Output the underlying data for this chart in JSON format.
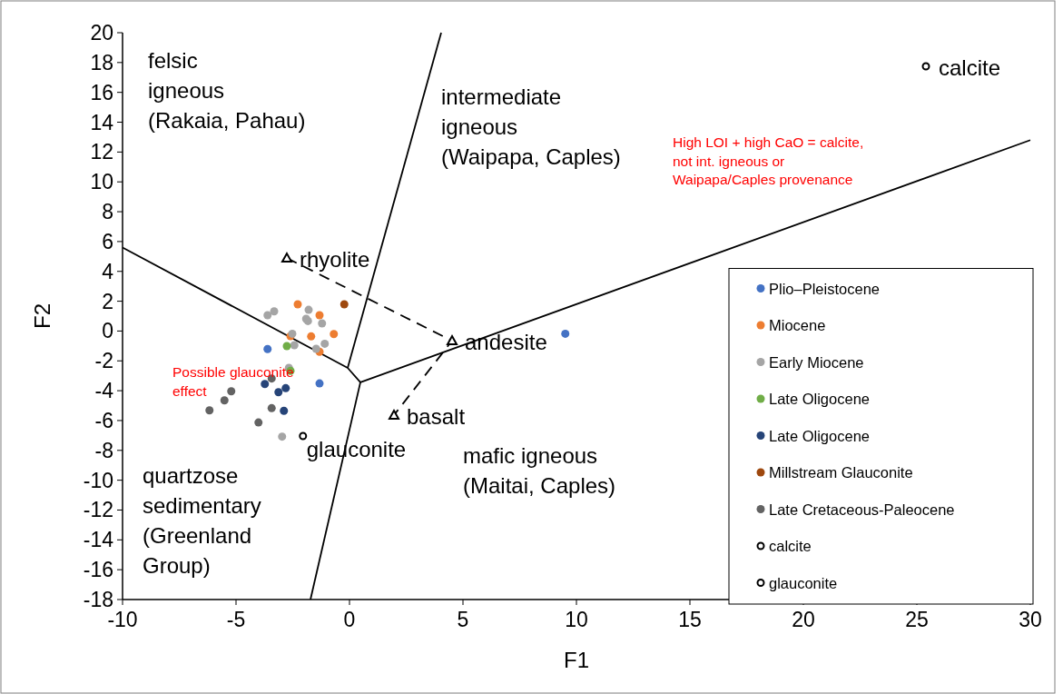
{
  "chart_data": {
    "type": "scatter",
    "xlabel": "F1",
    "ylabel": "F2",
    "xlim": [
      -10,
      30
    ],
    "ylim": [
      -18,
      20
    ],
    "xticks": [
      -10,
      -5,
      0,
      5,
      10,
      15,
      20,
      25,
      30
    ],
    "yticks": [
      -18,
      -16,
      -14,
      -12,
      -10,
      -8,
      -6,
      -4,
      -2,
      0,
      2,
      4,
      6,
      8,
      10,
      12,
      14,
      16,
      18,
      20
    ],
    "grid": false,
    "legend": "bottom right",
    "marker": "circle",
    "series": [
      {
        "type": "line",
        "color": "#000000",
        "line_style": "solid",
        "marker": "none",
        "x": [
          -10,
          -0.08,
          0.48,
          30
        ],
        "values": [
          5.6,
          -2.47,
          -3.44,
          12.8
        ]
      },
      {
        "type": "line",
        "color": "#000000",
        "line_style": "solid",
        "marker": "none",
        "x": [
          -0.08,
          4.04
        ],
        "values": [
          -2.47,
          20
        ]
      },
      {
        "type": "line",
        "color": "#000000",
        "line_style": "solid",
        "marker": "none",
        "x": [
          0.48,
          -1.72
        ],
        "values": [
          -3.44,
          -18
        ]
      },
      {
        "type": "line",
        "color": "#000000",
        "line_style": "dashed",
        "marker": "none",
        "x": [
          -2.76,
          4.52,
          1.96
        ],
        "values": [
          4.89,
          -0.65,
          -5.64
        ]
      },
      {
        "color": "#000000",
        "marker": "triangle",
        "x": [
          -2.76,
          4.52,
          1.96
        ],
        "values": [
          4.89,
          -0.65,
          -5.64
        ]
      },
      {
        "name": "Plio–Pleistocene",
        "color": "#4472c4",
        "x": [
          -3.61,
          -1.32,
          9.51
        ],
        "values": [
          -1.21,
          -3.51,
          -0.18
        ]
      },
      {
        "name": "Miocene",
        "color": "#ed7d31",
        "x": [
          -2.28,
          -1.32,
          -1.69,
          -0.69,
          -2.6,
          -1.32
        ],
        "values": [
          1.79,
          1.06,
          -0.36,
          -0.2,
          -0.34,
          -1.39
        ]
      },
      {
        "name": "Early Miocene",
        "color": "#a5a5a5",
        "x": [
          -3.61,
          -3.32,
          -1.8,
          -1.91,
          -1.83,
          -1.21,
          -2.52,
          -2.43,
          -1.09,
          -1.47,
          -2.67,
          -2.97
        ],
        "values": [
          1.06,
          1.32,
          1.42,
          0.82,
          0.67,
          0.51,
          -0.18,
          -0.95,
          -0.85,
          -1.19,
          -2.47,
          -7.08
        ]
      },
      {
        "name": "Late Oligocene",
        "color": "#70ad47",
        "x": [
          -2.76,
          -2.6
        ],
        "values": [
          -1.01,
          -2.67
        ]
      },
      {
        "name": "Late Oligocene",
        "color": "#264478",
        "x": [
          -3.73,
          -3.13,
          -2.81,
          -2.89
        ],
        "values": [
          -3.55,
          -4.1,
          -3.83,
          -5.35
        ]
      },
      {
        "name": "Millstream Glauconite",
        "color": "#9e480e",
        "x": [
          -0.23
        ],
        "values": [
          1.79
        ]
      },
      {
        "name": "Late Cretaceous-Paleocene",
        "color": "#636363",
        "x": [
          -3.43,
          -5.21,
          -5.51,
          -6.17,
          -3.43,
          -4.01
        ],
        "values": [
          -3.18,
          -4.04,
          -4.65,
          -5.32,
          -5.17,
          -6.13
        ]
      },
      {
        "name": "calcite",
        "color": "#000000",
        "x": [
          25.4
        ],
        "values": [
          17.75
        ]
      },
      {
        "name": "glauconite",
        "color": "#000000",
        "x": [
          -2.05
        ],
        "values": [
          -7.04
        ]
      }
    ],
    "annotations": [
      "felsic\nigneous\n(Rakaia, Pahau)",
      "intermediate\nigneous\n(Waipapa, Caples)",
      "High LOI + high CaO = calcite,\nnot int. igneous or\nWaipapa/Caples provenance",
      "Possible glauconite\neffect",
      "quartzose\nsedimentary\n(Greenland\nGroup)",
      "mafic igneous\n(Maitai, Caples)",
      {
        "text": "rhyolite",
        "x": -2.76,
        "y": 4.89
      },
      {
        "text": "andesite",
        "x": 4.52,
        "y": -0.65
      },
      {
        "text": "basalt",
        "x": 1.96,
        "y": -5.64
      },
      {
        "text": "glauconite",
        "x": -2.05,
        "y": -7.04
      },
      {
        "text": "calcite",
        "x": 25.4,
        "y": 17.75
      }
    ]
  }
}
